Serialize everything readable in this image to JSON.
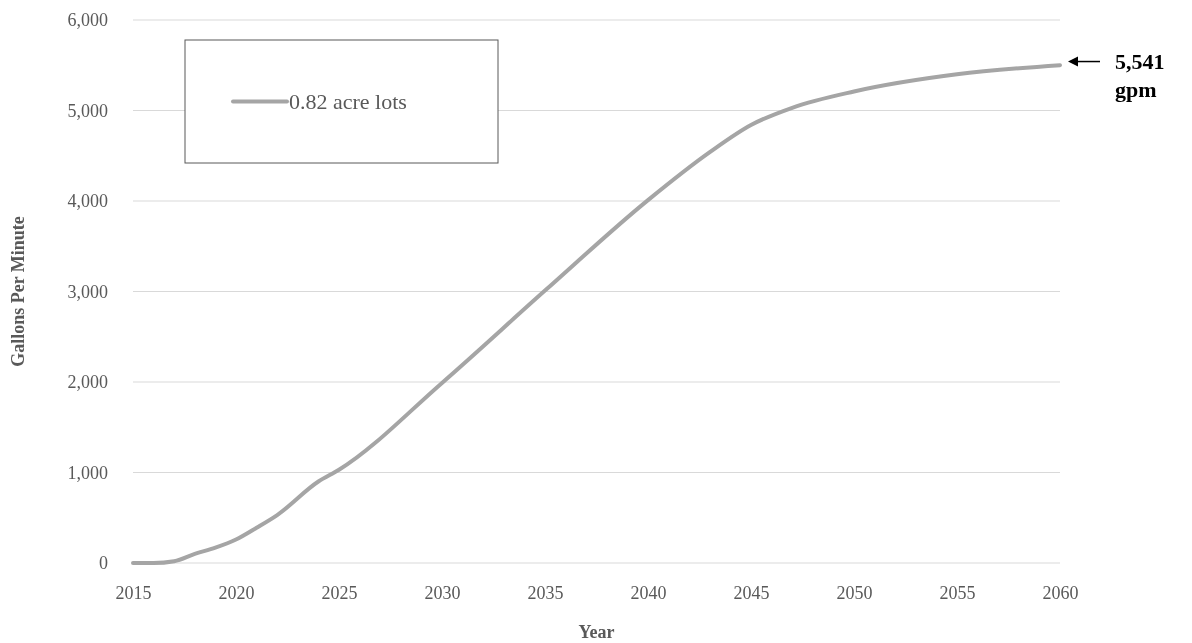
{
  "chart_data": {
    "type": "line",
    "xlabel": "Year",
    "ylabel": "Gallons Per Minute",
    "x": [
      2015,
      2016,
      2017,
      2018,
      2019,
      2020,
      2021,
      2022,
      2024,
      2025,
      2030,
      2035,
      2040,
      2043,
      2045,
      2047,
      2050,
      2055,
      2060
    ],
    "series": [
      {
        "name": "0.82 acre lots",
        "color": "#a5a5a5",
        "values": [
          0,
          0,
          20,
          100,
          170,
          260,
          390,
          530,
          900,
          1030,
          1990,
          3010,
          4010,
          4540,
          4840,
          5030,
          5210,
          5400,
          5500
        ]
      }
    ],
    "xlim": [
      2015,
      2060
    ],
    "xticks": [
      2015,
      2020,
      2025,
      2030,
      2035,
      2040,
      2045,
      2050,
      2055,
      2060
    ],
    "ylim": [
      0,
      6000
    ],
    "yticks": [
      {
        "value": 0,
        "label": "0"
      },
      {
        "value": 1000,
        "label": "1,000"
      },
      {
        "value": 2000,
        "label": "2,000"
      },
      {
        "value": 3000,
        "label": "3,000"
      },
      {
        "value": 4000,
        "label": "4,000"
      },
      {
        "value": 5000,
        "label": "5,000"
      },
      {
        "value": 6000,
        "label": "6,000"
      }
    ],
    "grid": "y",
    "legend": "top left",
    "marker": "none",
    "line_style": "solid",
    "annotations": [
      {
        "text": "5,541 gpm",
        "x": 2060,
        "y": 5541
      }
    ]
  }
}
